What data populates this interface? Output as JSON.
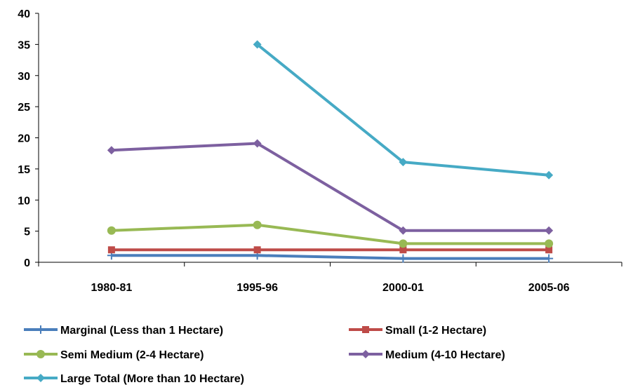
{
  "chart_data": {
    "type": "line",
    "categories": [
      "1980-81",
      "1995-96",
      "2000-01",
      "2005-06"
    ],
    "ylim": [
      0,
      40
    ],
    "yticks": [
      0,
      5,
      10,
      15,
      20,
      25,
      30,
      35,
      40
    ],
    "grid": false,
    "legend_position": "bottom",
    "series": [
      {
        "name": "Marginal (Less than 1 Hectare)",
        "color": "#4a7ebb",
        "marker": "plus",
        "values": [
          1.1,
          1.1,
          0.6,
          0.6
        ]
      },
      {
        "name": "Small (1-2 Hectare)",
        "color": "#be4b48",
        "marker": "square",
        "values": [
          2,
          2,
          2,
          2
        ]
      },
      {
        "name": "Semi Medium (2-4 Hectare)",
        "color": "#98b954",
        "marker": "circle",
        "values": [
          5.1,
          6,
          3,
          3
        ]
      },
      {
        "name": "Medium (4-10 Hectare)",
        "color": "#7d60a0",
        "marker": "diamond",
        "values": [
          18,
          19.1,
          5.1,
          5.1
        ]
      },
      {
        "name": "Large Total (More than 10 Hectare)",
        "color": "#46aac5",
        "marker": "diamond",
        "values": [
          null,
          35,
          16.1,
          14
        ]
      }
    ]
  }
}
